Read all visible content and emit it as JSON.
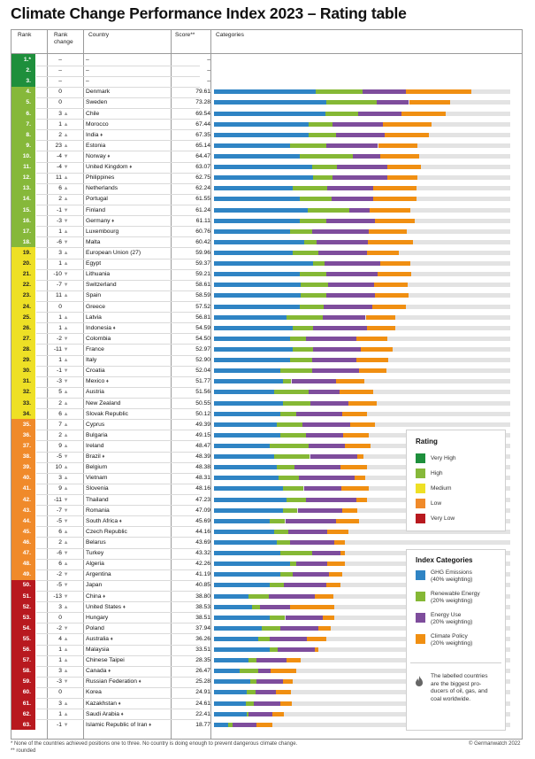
{
  "title": "Climate Change Performance Index 2023 – Rating table",
  "headers": {
    "rank": "Rank",
    "rank_change_1": "Rank",
    "rank_change_2": "change",
    "country": "Country",
    "score": "Score**",
    "categories": "Categories"
  },
  "colors": {
    "very_high": "#1e8f3c",
    "high": "#86b83a",
    "medium": "#eee025",
    "low": "#f08a2a",
    "very_low": "#b8191f",
    "ghg": "#2f84c4",
    "renewable": "#85b835",
    "energy": "#7e4d9c",
    "policy": "#f08f12",
    "bar_bg": "#e3e3e3"
  },
  "legend_rating": {
    "title": "Rating",
    "items": [
      "Very High",
      "High",
      "Medium",
      "Low",
      "Very Low"
    ]
  },
  "legend_categories": {
    "title": "Index Categories",
    "items": [
      {
        "l1": "GHG Emissions",
        "l2": "(40% weighting)"
      },
      {
        "l1": "Renewable Energy",
        "l2": "(20% weighting)"
      },
      {
        "l1": "Energy Use",
        "l2": "(20% weighting)"
      },
      {
        "l1": "Climate Policy",
        "l2": "(20% weighting)"
      }
    ]
  },
  "note": {
    "l1": "The labelled countries",
    "l2": "are the biggest pro-",
    "l3": "ducers of oil, gas, and",
    "l4": "coal worldwide."
  },
  "footnote1": "* None of the countries achieved positions one to three. No country is doing enough to prevent dangerous climate change.",
  "footnote2": "** rounded",
  "copyright": "© Germanwatch 2022",
  "chart_data": {
    "type": "bar",
    "stacked": true,
    "series": [
      {
        "name": "GHG Emissions",
        "weighting": "40% weighting"
      },
      {
        "name": "Renewable Energy",
        "weighting": "20% weighting"
      },
      {
        "name": "Energy Use",
        "weighting": "20% weighting"
      },
      {
        "name": "Climate Policy",
        "weighting": "20% weighting"
      }
    ],
    "rows": [
      {
        "rank": "1.*",
        "change": "–",
        "country": "–",
        "score": "–",
        "rating": "very_high",
        "values": null
      },
      {
        "rank": "2.",
        "change": "–",
        "country": "–",
        "score": "–",
        "rating": "very_high",
        "values": null
      },
      {
        "rank": "3.",
        "change": "–",
        "country": "–",
        "score": "–",
        "rating": "very_high",
        "values": null
      },
      {
        "rank": "4.",
        "change": "0",
        "dir": "none",
        "country": "Denmark",
        "score": "79.61",
        "rating": "high",
        "values": [
          32.8,
          15.2,
          14.0,
          21.0
        ]
      },
      {
        "rank": "5.",
        "change": "0",
        "dir": "none",
        "country": "Sweden",
        "score": "73.28",
        "rating": "high",
        "values": [
          36.2,
          16.5,
          10.3,
          13.4
        ]
      },
      {
        "rank": "6.",
        "change": "3",
        "dir": "up",
        "country": "Chile",
        "score": "69.54",
        "rating": "high",
        "values": [
          36.0,
          10.5,
          14.1,
          14.3
        ]
      },
      {
        "rank": "7.",
        "change": "1",
        "dir": "up",
        "country": "Morocco",
        "score": "67.44",
        "rating": "high",
        "values": [
          30.6,
          7.7,
          16.3,
          15.7
        ]
      },
      {
        "rank": "8.",
        "change": "2",
        "dir": "up",
        "country": "India",
        "score": "67.35",
        "rating": "high",
        "oil": true,
        "values": [
          30.6,
          8.7,
          15.8,
          14.3
        ]
      },
      {
        "rank": "9.",
        "change": "23",
        "dir": "up",
        "country": "Estonia",
        "score": "65.14",
        "rating": "high",
        "values": [
          24.5,
          11.7,
          16.8,
          12.8
        ]
      },
      {
        "rank": "10.",
        "change": "-4",
        "dir": "down",
        "country": "Norway",
        "score": "64.47",
        "rating": "high",
        "oil": true,
        "values": [
          27.6,
          17.3,
          8.7,
          12.6
        ]
      },
      {
        "rank": "11.",
        "change": "-4",
        "dir": "down",
        "country": "United Kingdom",
        "score": "63.07",
        "rating": "high",
        "oil": true,
        "values": [
          31.6,
          8.2,
          16.3,
          10.7
        ]
      },
      {
        "rank": "12.",
        "change": "11",
        "dir": "up",
        "country": "Philippines",
        "score": "62.75",
        "rating": "high",
        "values": [
          32.1,
          6.1,
          17.9,
          9.5
        ]
      },
      {
        "rank": "13.",
        "change": "6",
        "dir": "up",
        "country": "Netherlands",
        "score": "62.24",
        "rating": "high",
        "values": [
          25.5,
          11.2,
          14.8,
          13.8
        ]
      },
      {
        "rank": "14.",
        "change": "2",
        "dir": "up",
        "country": "Portugal",
        "score": "61.55",
        "rating": "high",
        "values": [
          27.6,
          10.5,
          13.4,
          13.8
        ]
      },
      {
        "rank": "15.",
        "change": "-1",
        "dir": "down",
        "country": "Finland",
        "score": "61.24",
        "rating": "high",
        "values": [
          30.2,
          13.4,
          6.6,
          13.1
        ]
      },
      {
        "rank": "16.",
        "change": "-3",
        "dir": "down",
        "country": "Germany",
        "score": "61.11",
        "rating": "high",
        "oil": true,
        "values": [
          27.6,
          8.7,
          15.8,
          12.8
        ]
      },
      {
        "rank": "17.",
        "change": "1",
        "dir": "up",
        "country": "Luxembourg",
        "score": "60.76",
        "rating": "high",
        "values": [
          24.5,
          7.2,
          18.4,
          12.3
        ]
      },
      {
        "rank": "18.",
        "change": "-6",
        "dir": "down",
        "country": "Malta",
        "score": "60.42",
        "rating": "high",
        "values": [
          29.1,
          4.1,
          16.5,
          14.5
        ]
      },
      {
        "rank": "19.",
        "change": "3",
        "dir": "up",
        "country": "European Union (27)",
        "score": "59.96",
        "rating": "medium",
        "values": [
          25.5,
          8.2,
          15.8,
          10.2
        ]
      },
      {
        "rank": "20.",
        "change": "1",
        "dir": "up",
        "country": "Egypt",
        "score": "59.37",
        "rating": "medium",
        "values": [
          32.1,
          3.6,
          17.9,
          9.9
        ]
      },
      {
        "rank": "21.",
        "change": "-10",
        "dir": "down",
        "country": "Lithuania",
        "score": "59.21",
        "rating": "medium",
        "values": [
          27.6,
          8.7,
          16.5,
          10.8
        ]
      },
      {
        "rank": "22.",
        "change": "-7",
        "dir": "down",
        "country": "Switzerland",
        "score": "58.61",
        "rating": "medium",
        "values": [
          28.1,
          8.7,
          14.8,
          11.1
        ]
      },
      {
        "rank": "23.",
        "change": "11",
        "dir": "up",
        "country": "Spain",
        "score": "58.59",
        "rating": "medium",
        "values": [
          28.1,
          8.2,
          15.8,
          10.8
        ]
      },
      {
        "rank": "24.",
        "change": "0",
        "dir": "none",
        "country": "Greece",
        "score": "57.52",
        "rating": "medium",
        "values": [
          27.6,
          7.7,
          15.8,
          10.8
        ]
      },
      {
        "rank": "25.",
        "change": "1",
        "dir": "up",
        "country": "Latvia",
        "score": "56.81",
        "rating": "medium",
        "values": [
          23.5,
          11.7,
          13.8,
          9.7
        ]
      },
      {
        "rank": "26.",
        "change": "1",
        "dir": "up",
        "country": "Indonesia",
        "score": "54.59",
        "rating": "medium",
        "oil": true,
        "values": [
          25.5,
          6.6,
          17.3,
          9.3
        ]
      },
      {
        "rank": "27.",
        "change": "-2",
        "dir": "down",
        "country": "Colombia",
        "score": "54.50",
        "rating": "medium",
        "values": [
          24.5,
          5.1,
          16.3,
          10.2
        ]
      },
      {
        "rank": "28.",
        "change": "-11",
        "dir": "down",
        "country": "France",
        "score": "52.97",
        "rating": "medium",
        "values": [
          25.5,
          6.6,
          15.3,
          10.2
        ]
      },
      {
        "rank": "29.",
        "change": "1",
        "dir": "up",
        "country": "Italy",
        "score": "52.90",
        "rating": "medium",
        "values": [
          24.5,
          7.2,
          14.3,
          10.2
        ]
      },
      {
        "rank": "30.",
        "change": "-1",
        "dir": "down",
        "country": "Croatia",
        "score": "52.04",
        "rating": "medium",
        "values": [
          21.4,
          10.2,
          15.3,
          8.7
        ]
      },
      {
        "rank": "31.",
        "change": "-3",
        "dir": "down",
        "country": "Mexico",
        "score": "51.77",
        "rating": "medium",
        "oil": true,
        "values": [
          22.4,
          2.6,
          14.3,
          9.2
        ]
      },
      {
        "rank": "32.",
        "change": "5",
        "dir": "up",
        "country": "Austria",
        "score": "51.56",
        "rating": "medium",
        "values": [
          19.3,
          11.2,
          10.2,
          10.7
        ]
      },
      {
        "rank": "33.",
        "change": "2",
        "dir": "up",
        "country": "New Zealand",
        "score": "50.55",
        "rating": "medium",
        "values": [
          22.4,
          8.7,
          12.2,
          9.2
        ]
      },
      {
        "rank": "34.",
        "change": "6",
        "dir": "up",
        "country": "Slovak Republic",
        "score": "50.12",
        "rating": "medium",
        "values": [
          21.4,
          5.1,
          14.8,
          8.2
        ]
      },
      {
        "rank": "35.",
        "change": "7",
        "dir": "up",
        "country": "Cyprus",
        "score": "49.39",
        "rating": "low",
        "values": [
          20.4,
          8.2,
          15.3,
          8.2
        ]
      },
      {
        "rank": "36.",
        "change": "2",
        "dir": "up",
        "country": "Bulgaria",
        "score": "49.15",
        "rating": "low",
        "values": [
          21.4,
          8.2,
          12.2,
          8.2
        ]
      },
      {
        "rank": "37.",
        "change": "9",
        "dir": "up",
        "country": "Ireland",
        "score": "48.47",
        "rating": "low",
        "values": [
          17.9,
          12.8,
          11.7,
          8.2
        ]
      },
      {
        "rank": "38.",
        "change": "-5",
        "dir": "down",
        "country": "Brazil",
        "score": "48.39",
        "rating": "low",
        "oil": true,
        "values": [
          19.3,
          11.7,
          15.3,
          2.0
        ]
      },
      {
        "rank": "39.",
        "change": "10",
        "dir": "up",
        "country": "Belgium",
        "score": "48.38",
        "rating": "low",
        "values": [
          20.4,
          5.6,
          14.8,
          8.7
        ]
      },
      {
        "rank": "40.",
        "change": "3",
        "dir": "up",
        "country": "Vietnam",
        "score": "48.31",
        "rating": "low",
        "values": [
          20.9,
          6.6,
          17.9,
          3.6
        ]
      },
      {
        "rank": "41.",
        "change": "9",
        "dir": "up",
        "country": "Slovenia",
        "score": "48.16",
        "rating": "low",
        "values": [
          22.4,
          6.6,
          12.2,
          8.7
        ]
      },
      {
        "rank": "42.",
        "change": "-11",
        "dir": "down",
        "country": "Thailand",
        "score": "47.23",
        "rating": "low",
        "values": [
          23.5,
          6.1,
          16.3,
          3.6
        ]
      },
      {
        "rank": "43.",
        "change": "-7",
        "dir": "down",
        "country": "Romania",
        "score": "47.09",
        "rating": "low",
        "values": [
          22.4,
          4.6,
          14.3,
          5.1
        ]
      },
      {
        "rank": "44.",
        "change": "-5",
        "dir": "down",
        "country": "South Africa",
        "score": "45.69",
        "rating": "low",
        "oil": true,
        "values": [
          17.9,
          5.1,
          16.3,
          7.7
        ]
      },
      {
        "rank": "45.",
        "change": "6",
        "dir": "up",
        "country": "Czech Republic",
        "score": "44.16",
        "rating": "low",
        "values": [
          19.3,
          4.6,
          12.8,
          6.6
        ]
      },
      {
        "rank": "46.",
        "change": "2",
        "dir": "up",
        "country": "Belarus",
        "score": "43.69",
        "rating": "low",
        "values": [
          20.4,
          4.1,
          14.3,
          3.6
        ]
      },
      {
        "rank": "47.",
        "change": "-6",
        "dir": "down",
        "country": "Turkey",
        "score": "43.32",
        "rating": "low",
        "values": [
          21.4,
          10.2,
          9.2,
          1.5
        ]
      },
      {
        "rank": "48.",
        "change": "6",
        "dir": "up",
        "country": "Algeria",
        "score": "42.26",
        "rating": "low",
        "values": [
          24.5,
          2.0,
          10.2,
          5.6
        ]
      },
      {
        "rank": "49.",
        "change": "-2",
        "dir": "down",
        "country": "Argentina",
        "score": "41.19",
        "rating": "low",
        "values": [
          21.4,
          4.1,
          11.7,
          4.1
        ]
      },
      {
        "rank": "50.",
        "change": "-5",
        "dir": "down",
        "country": "Japan",
        "score": "40.85",
        "rating": "very_low",
        "values": [
          17.9,
          4.6,
          13.8,
          4.6
        ]
      },
      {
        "rank": "51.",
        "change": "-13",
        "dir": "down",
        "country": "China",
        "score": "38.80",
        "rating": "very_low",
        "oil": true,
        "values": [
          11.2,
          6.6,
          14.8,
          6.1
        ]
      },
      {
        "rank": "52.",
        "change": "3",
        "dir": "up",
        "country": "United States",
        "score": "38.53",
        "rating": "very_low",
        "oil": true,
        "values": [
          12.2,
          2.6,
          9.7,
          14.3
        ]
      },
      {
        "rank": "53.",
        "change": "0",
        "dir": "none",
        "country": "Hungary",
        "score": "38.51",
        "rating": "very_low",
        "values": [
          17.9,
          5.1,
          12.2,
          3.6
        ]
      },
      {
        "rank": "54.",
        "change": "-2",
        "dir": "down",
        "country": "Poland",
        "score": "37.94",
        "rating": "very_low",
        "values": [
          15.3,
          6.1,
          12.2,
          4.1
        ]
      },
      {
        "rank": "55.",
        "change": "4",
        "dir": "up",
        "country": "Australia",
        "score": "36.26",
        "rating": "very_low",
        "oil": true,
        "values": [
          14.3,
          3.6,
          12.2,
          6.1
        ]
      },
      {
        "rank": "56.",
        "change": "1",
        "dir": "up",
        "country": "Malaysia",
        "score": "33.51",
        "rating": "very_low",
        "values": [
          17.9,
          2.6,
          12.2,
          1.0
        ]
      },
      {
        "rank": "57.",
        "change": "1",
        "dir": "up",
        "country": "Chinese Taipei",
        "score": "28.35",
        "rating": "very_low",
        "values": [
          11.2,
          2.6,
          9.7,
          4.6
        ]
      },
      {
        "rank": "58.",
        "change": "3",
        "dir": "up",
        "country": "Canada",
        "score": "26.47",
        "rating": "very_low",
        "oil": true,
        "values": [
          8.2,
          6.1,
          4.1,
          8.2
        ]
      },
      {
        "rank": "59.",
        "change": "-3",
        "dir": "down",
        "country": "Russian Federation",
        "score": "25.28",
        "rating": "very_low",
        "oil": true,
        "values": [
          11.7,
          2.0,
          8.7,
          3.1
        ]
      },
      {
        "rank": "60.",
        "change": "0",
        "dir": "none",
        "country": "Korea",
        "score": "24.91",
        "rating": "very_low",
        "values": [
          10.7,
          2.6,
          6.6,
          5.1
        ]
      },
      {
        "rank": "61.",
        "change": "3",
        "dir": "up",
        "country": "Kazakhstan",
        "score": "24.61",
        "rating": "very_low",
        "oil": true,
        "values": [
          10.2,
          2.6,
          8.7,
          3.6
        ]
      },
      {
        "rank": "62.",
        "change": "1",
        "dir": "up",
        "country": "Saudi Arabia",
        "score": "22.41",
        "rating": "very_low",
        "oil": true,
        "values": [
          10.7,
          0.5,
          7.7,
          3.6
        ]
      },
      {
        "rank": "63.",
        "change": "-1",
        "dir": "down",
        "country": "Islamic Republic of Iran",
        "score": "18.77",
        "rating": "very_low",
        "oil": true,
        "values": [
          4.6,
          1.5,
          7.7,
          5.1
        ]
      }
    ]
  }
}
